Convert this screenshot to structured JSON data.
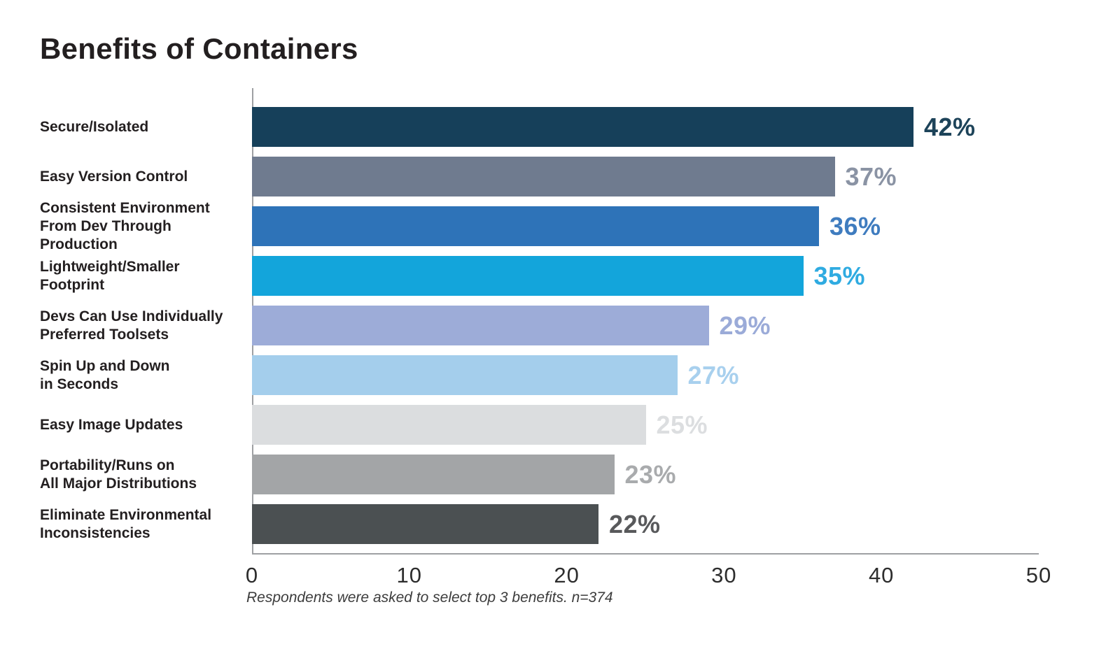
{
  "title": "Benefits of Containers",
  "footnote": "Respondents were asked to select top 3 benefits. n=374",
  "chart_data": {
    "type": "bar",
    "orientation": "horizontal",
    "title": "Benefits of Containers",
    "categories": [
      "Secure/Isolated",
      "Easy Version Control",
      "Consistent Environment\nFrom Dev Through\nProduction",
      "Lightweight/Smaller\nFootprint",
      "Devs Can Use Individually\nPreferred Toolsets",
      "Spin Up and Down\nin Seconds",
      "Easy Image Updates",
      "Portability/Runs on\nAll Major Distributions",
      "Eliminate Environmental\nInconsistencies"
    ],
    "values": [
      42,
      37,
      36,
      35,
      29,
      27,
      25,
      23,
      22
    ],
    "value_labels": [
      "42%",
      "37%",
      "36%",
      "35%",
      "29%",
      "27%",
      "25%",
      "23%",
      "22%"
    ],
    "bar_colors": [
      "#16405A",
      "#6F7B8F",
      "#2E73B8",
      "#13A5DB",
      "#9DACD8",
      "#A4CEEC",
      "#DBDDDF",
      "#A3A5A7",
      "#4B5052"
    ],
    "value_label_colors": [
      "#1D4359",
      "#8A93A4",
      "#3F7CBF",
      "#2FABE1",
      "#9BABD8",
      "#A8D0EE",
      "#DCDEE0",
      "#A9ABAD",
      "#58595B"
    ],
    "xlabel": "",
    "ylabel": "",
    "xlim": [
      0,
      50
    ],
    "x_ticks": [
      "0",
      "10",
      "20",
      "30",
      "40",
      "50"
    ],
    "grid": false,
    "legend": false,
    "annotation": "Respondents were asked to select top 3 benefits. n=374"
  }
}
